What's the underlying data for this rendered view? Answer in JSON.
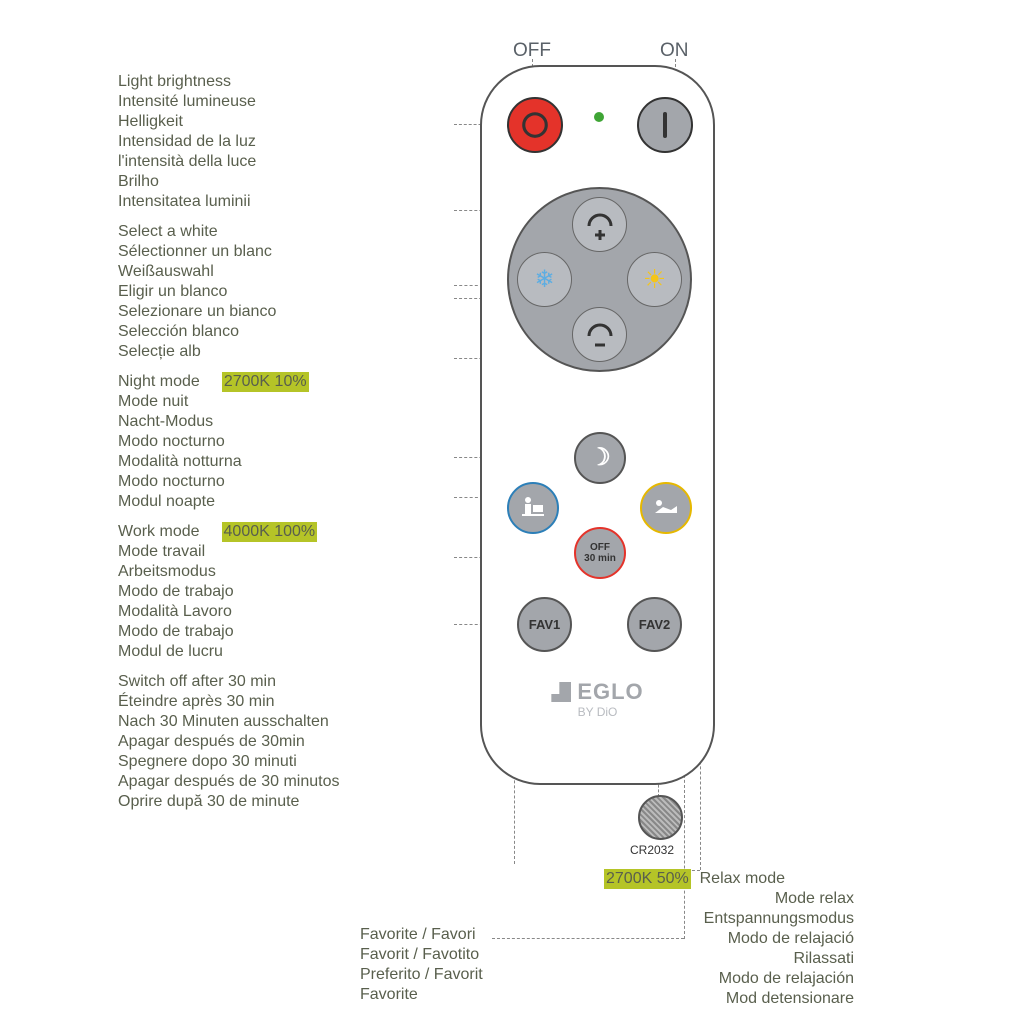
{
  "top": {
    "off": "OFF",
    "on": "ON"
  },
  "brand": {
    "name": "EGLO",
    "sub": "BY DiO"
  },
  "battery": "CR2032",
  "buttons": {
    "fav1": "FAV1",
    "fav2": "FAV2",
    "timer_line1": "OFF",
    "timer_line2": "30 min"
  },
  "groups": {
    "brightness": [
      "Light brightness",
      "Intensité lumineuse",
      "Helligkeit",
      "Intensidad de la luz",
      "l'intensità della luce",
      "Brilho",
      "Intensitatea luminii"
    ],
    "white": [
      "Select a white",
      "Sélectionner un blanc",
      "Weißauswahl",
      "Eligir un blanco",
      "Selezionare un bianco",
      "Selección blanco",
      "Selecție alb"
    ],
    "night": {
      "hl": "2700K 10%",
      "lines": [
        "Night mode",
        "Mode nuit",
        "Nacht-Modus",
        "Modo nocturno",
        "Modalità notturna",
        "Modo nocturno",
        "Modul noapte"
      ]
    },
    "work": {
      "hl": "4000K 100%",
      "lines": [
        "Work mode",
        "Mode travail",
        "Arbeitsmodus",
        "Modo de trabajo",
        "Modalità Lavoro",
        "Modo de trabajo",
        "Modul de lucru"
      ]
    },
    "timer": [
      "Switch off after 30 min",
      "Éteindre après 30 min",
      "Nach 30 Minuten ausschalten",
      "Apagar después de 30min",
      "Spegnere dopo 30 minuti",
      "Apagar después de 30 minutos",
      "Oprire după 30 de minute"
    ],
    "relax": {
      "hl": "2700K 50%",
      "lines": [
        "Relax mode",
        "Mode relax",
        "Entspannungsmodus",
        "Modo de relajació",
        "Rilassati",
        "Modo de relajación",
        "Mod detensionare"
      ]
    },
    "fav": [
      "Favorite / Favori",
      "Favorit / Favotito",
      "Preferito / Favorit",
      "Favorite"
    ]
  },
  "colors": {
    "remote_button": "#a3a6ab",
    "off_btn": "#e4332a",
    "led": "#3fa535",
    "hl": "#b5c427",
    "text": "#595f4d",
    "work_border": "#2c7fb8",
    "relax_border": "#e6b800",
    "timer_border": "#e4332a"
  }
}
